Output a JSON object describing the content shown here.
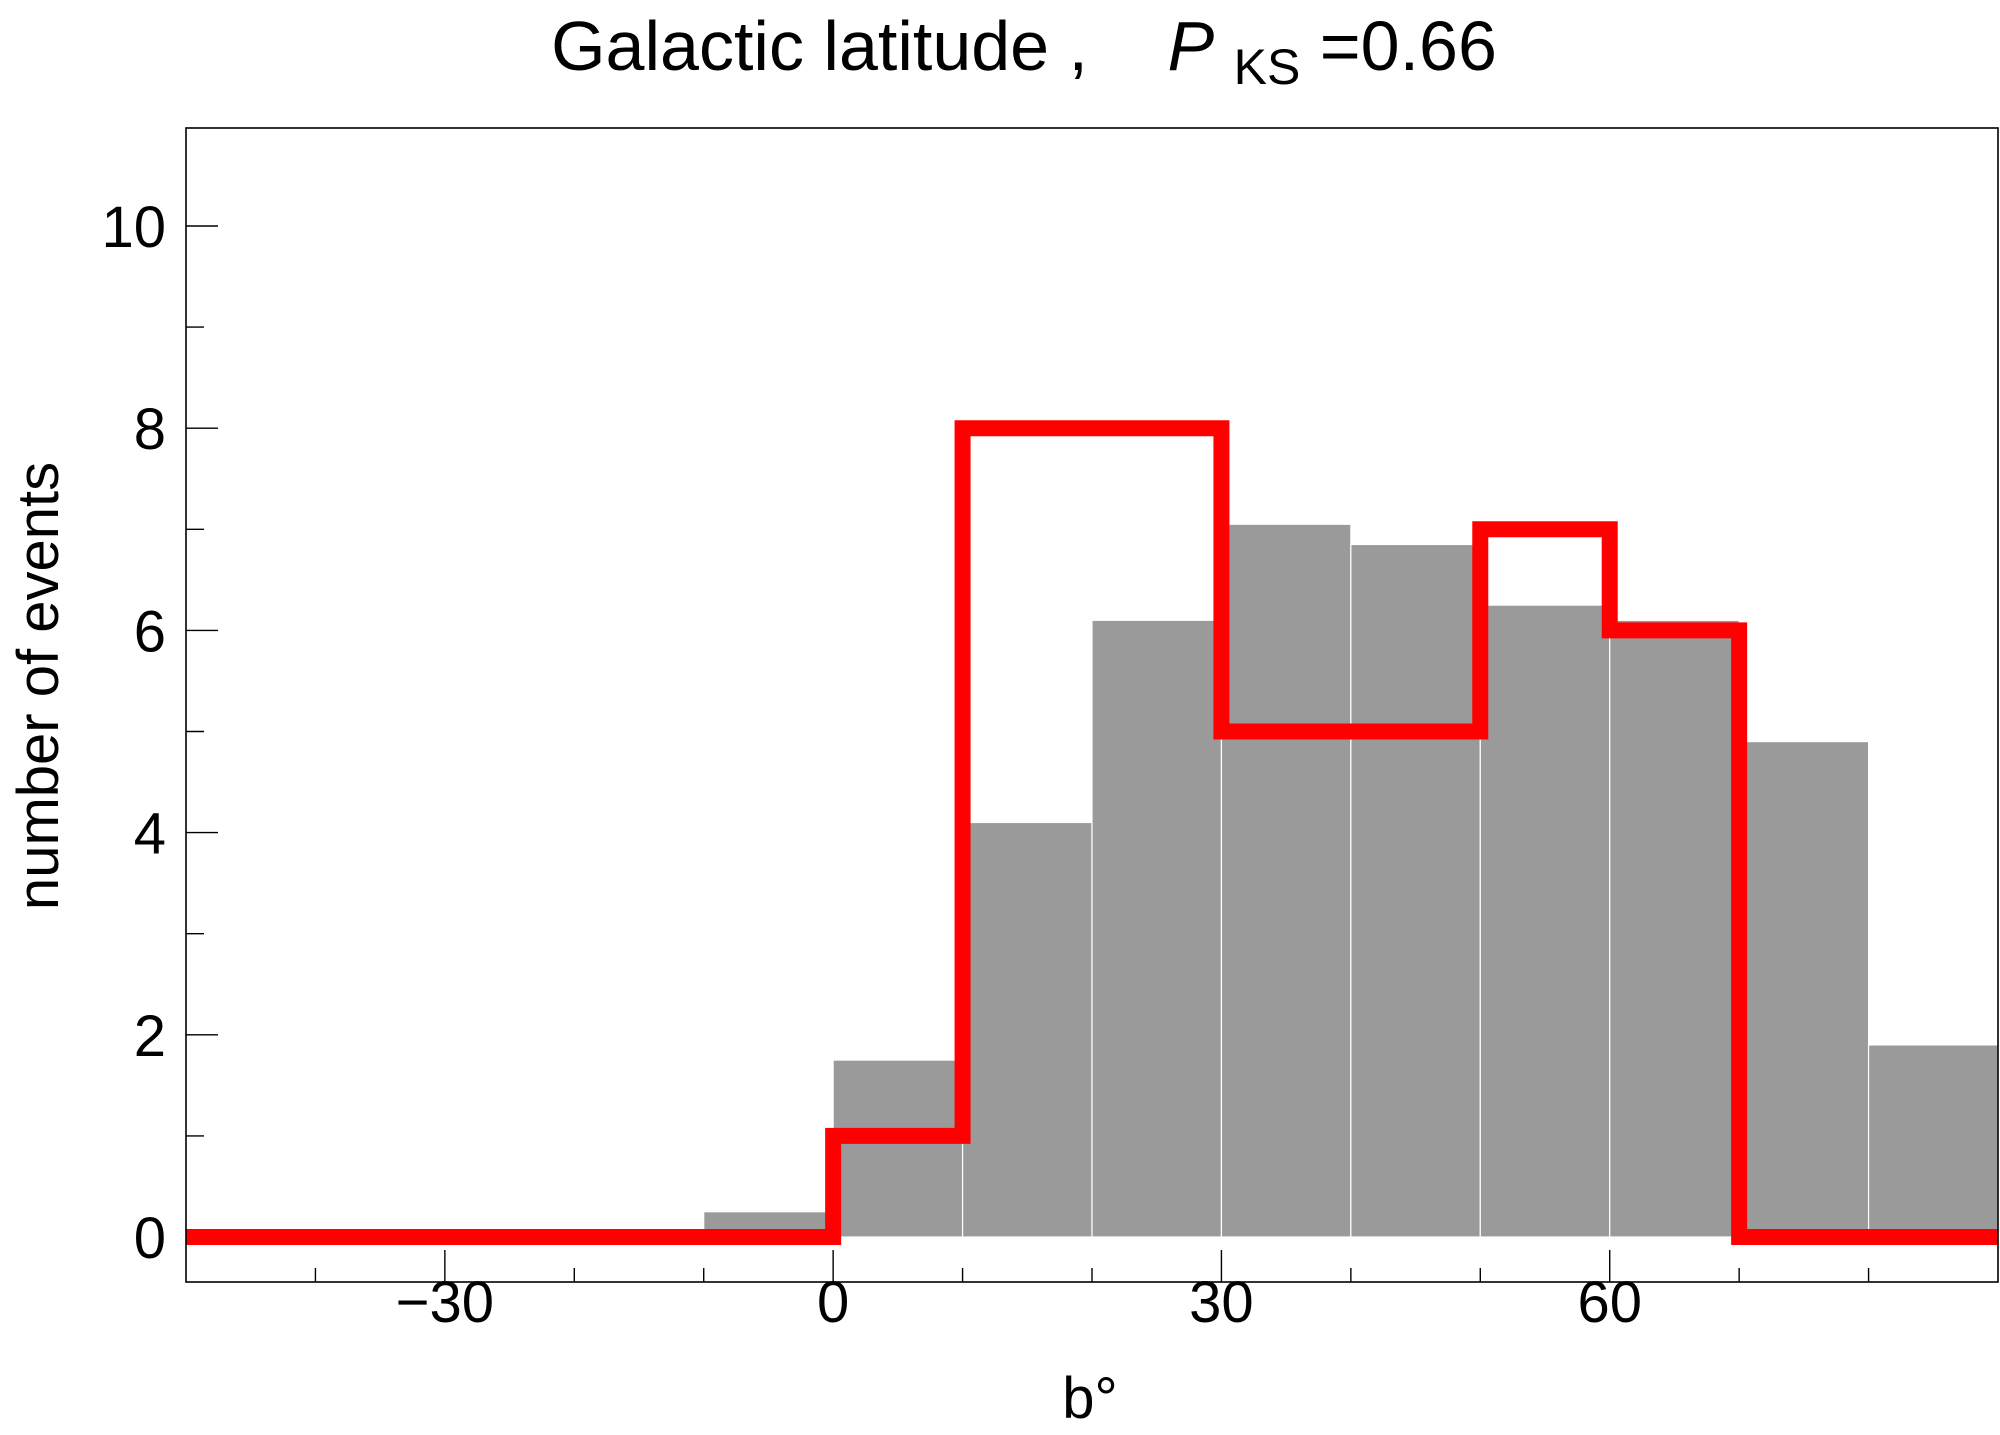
{
  "chart_data": {
    "type": "bar",
    "title": {
      "prefix": "Galactic  latitude ,",
      "p_symbol": "P",
      "p_subscript": "KS",
      "p_value": "=0.66"
    },
    "xlabel": "b°",
    "ylabel": "number of events",
    "xlim": [
      -50,
      90
    ],
    "ylim": [
      0,
      11
    ],
    "x_ticks": [
      -30,
      0,
      30,
      60
    ],
    "x_tick_labels": [
      "−30",
      "0",
      "30",
      "60"
    ],
    "y_ticks": [
      0,
      2,
      4,
      6,
      8,
      10
    ],
    "y_tick_labels": [
      "0",
      "2",
      "4",
      "6",
      "8",
      "10"
    ],
    "bin_edges": [
      -50,
      -40,
      -30,
      -20,
      -10,
      0,
      10,
      20,
      30,
      40,
      50,
      60,
      70,
      80,
      90
    ],
    "series": [
      {
        "kind": "filled-bars",
        "color": "#9a9a9a",
        "values": [
          0.05,
          0.05,
          0.05,
          0.05,
          0.25,
          1.75,
          4.1,
          6.1,
          7.05,
          6.85,
          6.25,
          6.1,
          4.9,
          1.9
        ]
      },
      {
        "kind": "step-outline",
        "color": "#ff0000",
        "values": [
          0,
          0,
          0,
          0,
          0,
          1,
          8,
          8,
          5,
          5,
          7,
          6,
          0,
          0
        ]
      }
    ]
  }
}
